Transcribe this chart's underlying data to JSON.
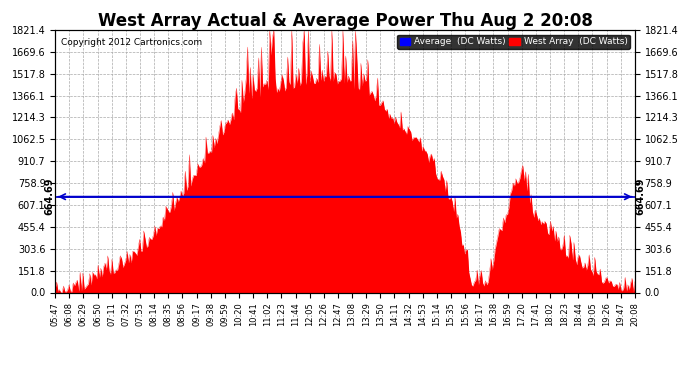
{
  "title": "West Array Actual & Average Power Thu Aug 2 20:08",
  "copyright": "Copyright 2012 Cartronics.com",
  "ymax": 1821.4,
  "ymin": 0.0,
  "yticks": [
    0.0,
    151.8,
    303.6,
    455.4,
    607.1,
    758.9,
    910.7,
    1062.5,
    1214.3,
    1366.1,
    1517.8,
    1669.6,
    1821.4
  ],
  "hline_value": 664.69,
  "hline_label": "664.69",
  "fill_color": "#FF0000",
  "avg_color": "#0000CC",
  "background_color": "#FFFFFF",
  "plot_bg_color": "#FFFFFF",
  "grid_color": "#AAAAAA",
  "legend_bg": "#000000",
  "legend_avg_color": "#0000FF",
  "legend_west_color": "#FF0000",
  "title_fontsize": 12,
  "tick_fontsize": 7,
  "x_tick_labels": [
    "05:47",
    "06:08",
    "06:29",
    "06:50",
    "07:11",
    "07:32",
    "07:53",
    "08:14",
    "08:35",
    "08:56",
    "09:17",
    "09:38",
    "09:59",
    "10:20",
    "10:41",
    "11:02",
    "11:23",
    "11:44",
    "12:05",
    "12:26",
    "12:47",
    "13:08",
    "13:29",
    "13:50",
    "14:11",
    "14:32",
    "14:53",
    "15:14",
    "15:35",
    "15:56",
    "16:17",
    "16:38",
    "16:59",
    "17:20",
    "17:41",
    "18:02",
    "18:23",
    "18:44",
    "19:05",
    "19:26",
    "19:47",
    "20:08"
  ]
}
